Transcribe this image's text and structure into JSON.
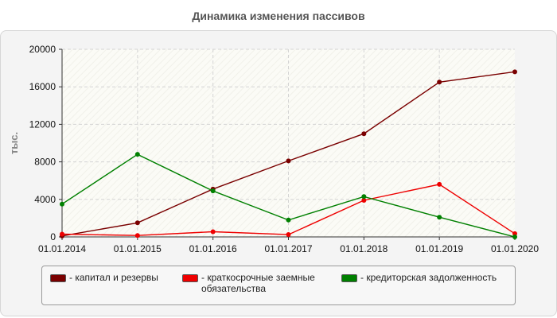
{
  "chart_data": {
    "type": "line",
    "title": "Динамика изменения пассивов",
    "ylabel": "тыс.",
    "xlabel": "",
    "categories": [
      "01.01.2014",
      "01.01.2015",
      "01.01.2016",
      "01.01.2017",
      "01.01.2018",
      "01.01.2019",
      "01.01.2020"
    ],
    "ylim": [
      0,
      20000
    ],
    "yticks": [
      0,
      4000,
      8000,
      12000,
      16000,
      20000
    ],
    "grid": true,
    "legend_position": "bottom",
    "series": [
      {
        "name": "- капитал и резервы",
        "color": "#7a0000",
        "values": [
          100,
          1500,
          5100,
          8100,
          11000,
          16500,
          17600
        ]
      },
      {
        "name": "- краткосрочные заемные\nобязательства",
        "color": "#ee0000",
        "values": [
          300,
          150,
          550,
          250,
          3900,
          5600,
          350
        ]
      },
      {
        "name": "- кредиторская задолженность",
        "color": "#008000",
        "values": [
          3500,
          8800,
          4900,
          1800,
          4300,
          2100,
          0
        ]
      }
    ]
  }
}
